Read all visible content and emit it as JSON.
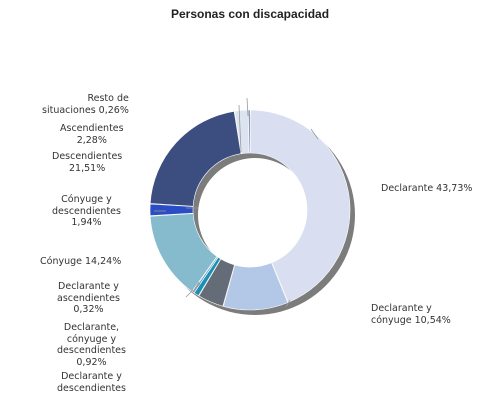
{
  "chart_data": {
    "type": "pie",
    "variant": "donut",
    "title": "Personas con discapacidad",
    "slices": [
      {
        "label": "Declarante",
        "value": 43.73,
        "display": "Declarante 43,73%",
        "color": "#D9DFF0"
      },
      {
        "label": "Declarante y cónyuge",
        "value": 10.54,
        "display": "Declarante y\ncónyuge 10,54%",
        "color": "#B3C7E6"
      },
      {
        "label": "Declarante y descendientes",
        "value": 4.23,
        "display": "Declarante y\ndescendientes",
        "color": "#646C78"
      },
      {
        "label": "Declarante, cónyuge y descendientes",
        "value": 0.92,
        "display": "Declarante,\ncónyuge y\ndescendientes\n0,92%",
        "color": "#1E8FB4"
      },
      {
        "label": "Declarante y ascendientes",
        "value": 0.32,
        "display": "Declarante y\nascendientes\n0,32%",
        "color": "#6CA8C6"
      },
      {
        "label": "Cónyuge",
        "value": 14.24,
        "display": "Cónyuge 14,24%",
        "color": "#86BACD"
      },
      {
        "label": "Cónyuge y descendientes",
        "value": 1.94,
        "display": "Cónyuge y\ndescendientes\n1,94%",
        "color": "#2A4CC4"
      },
      {
        "label": "Descendientes",
        "value": 21.51,
        "display": "Descendientes\n21,51%",
        "color": "#3C4D80"
      },
      {
        "label": "Ascendientes",
        "value": 2.28,
        "display": "Ascendientes\n2,28%",
        "color": "#DCE4F2"
      },
      {
        "label": "Resto de situaciones",
        "value": 0.26,
        "display": "Resto de\nsituaciones 0,26%",
        "color": "#5A6C98"
      }
    ]
  }
}
